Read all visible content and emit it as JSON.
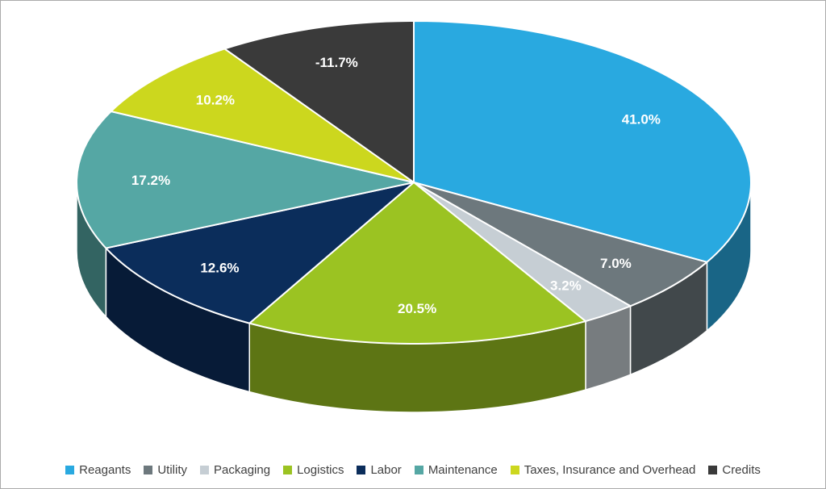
{
  "chart_data": {
    "type": "pie",
    "title": "",
    "effect": "3d",
    "legend_position": "bottom",
    "categories": [
      "Reagants",
      "Utility",
      "Packaging",
      "Logistics",
      "Labor",
      "Maintenance",
      "Taxes, Insurance and Overhead",
      "Credits"
    ],
    "values": [
      41.0,
      7.0,
      3.2,
      20.5,
      12.6,
      17.2,
      10.2,
      -11.7
    ],
    "labels": [
      "41.0%",
      "7.0%",
      "3.2%",
      "20.5%",
      "12.6%",
      "17.2%",
      "10.2%",
      "-11.7%"
    ],
    "colors": [
      "#29A9E0",
      "#6D787D",
      "#C6CED4",
      "#9BC322",
      "#0B2D5B",
      "#55A7A4",
      "#CCD71E",
      "#3A3A3A"
    ],
    "label_text_color": "#ffffff",
    "legend_text_color": "#404040",
    "frame_border_color": "#ababab"
  }
}
